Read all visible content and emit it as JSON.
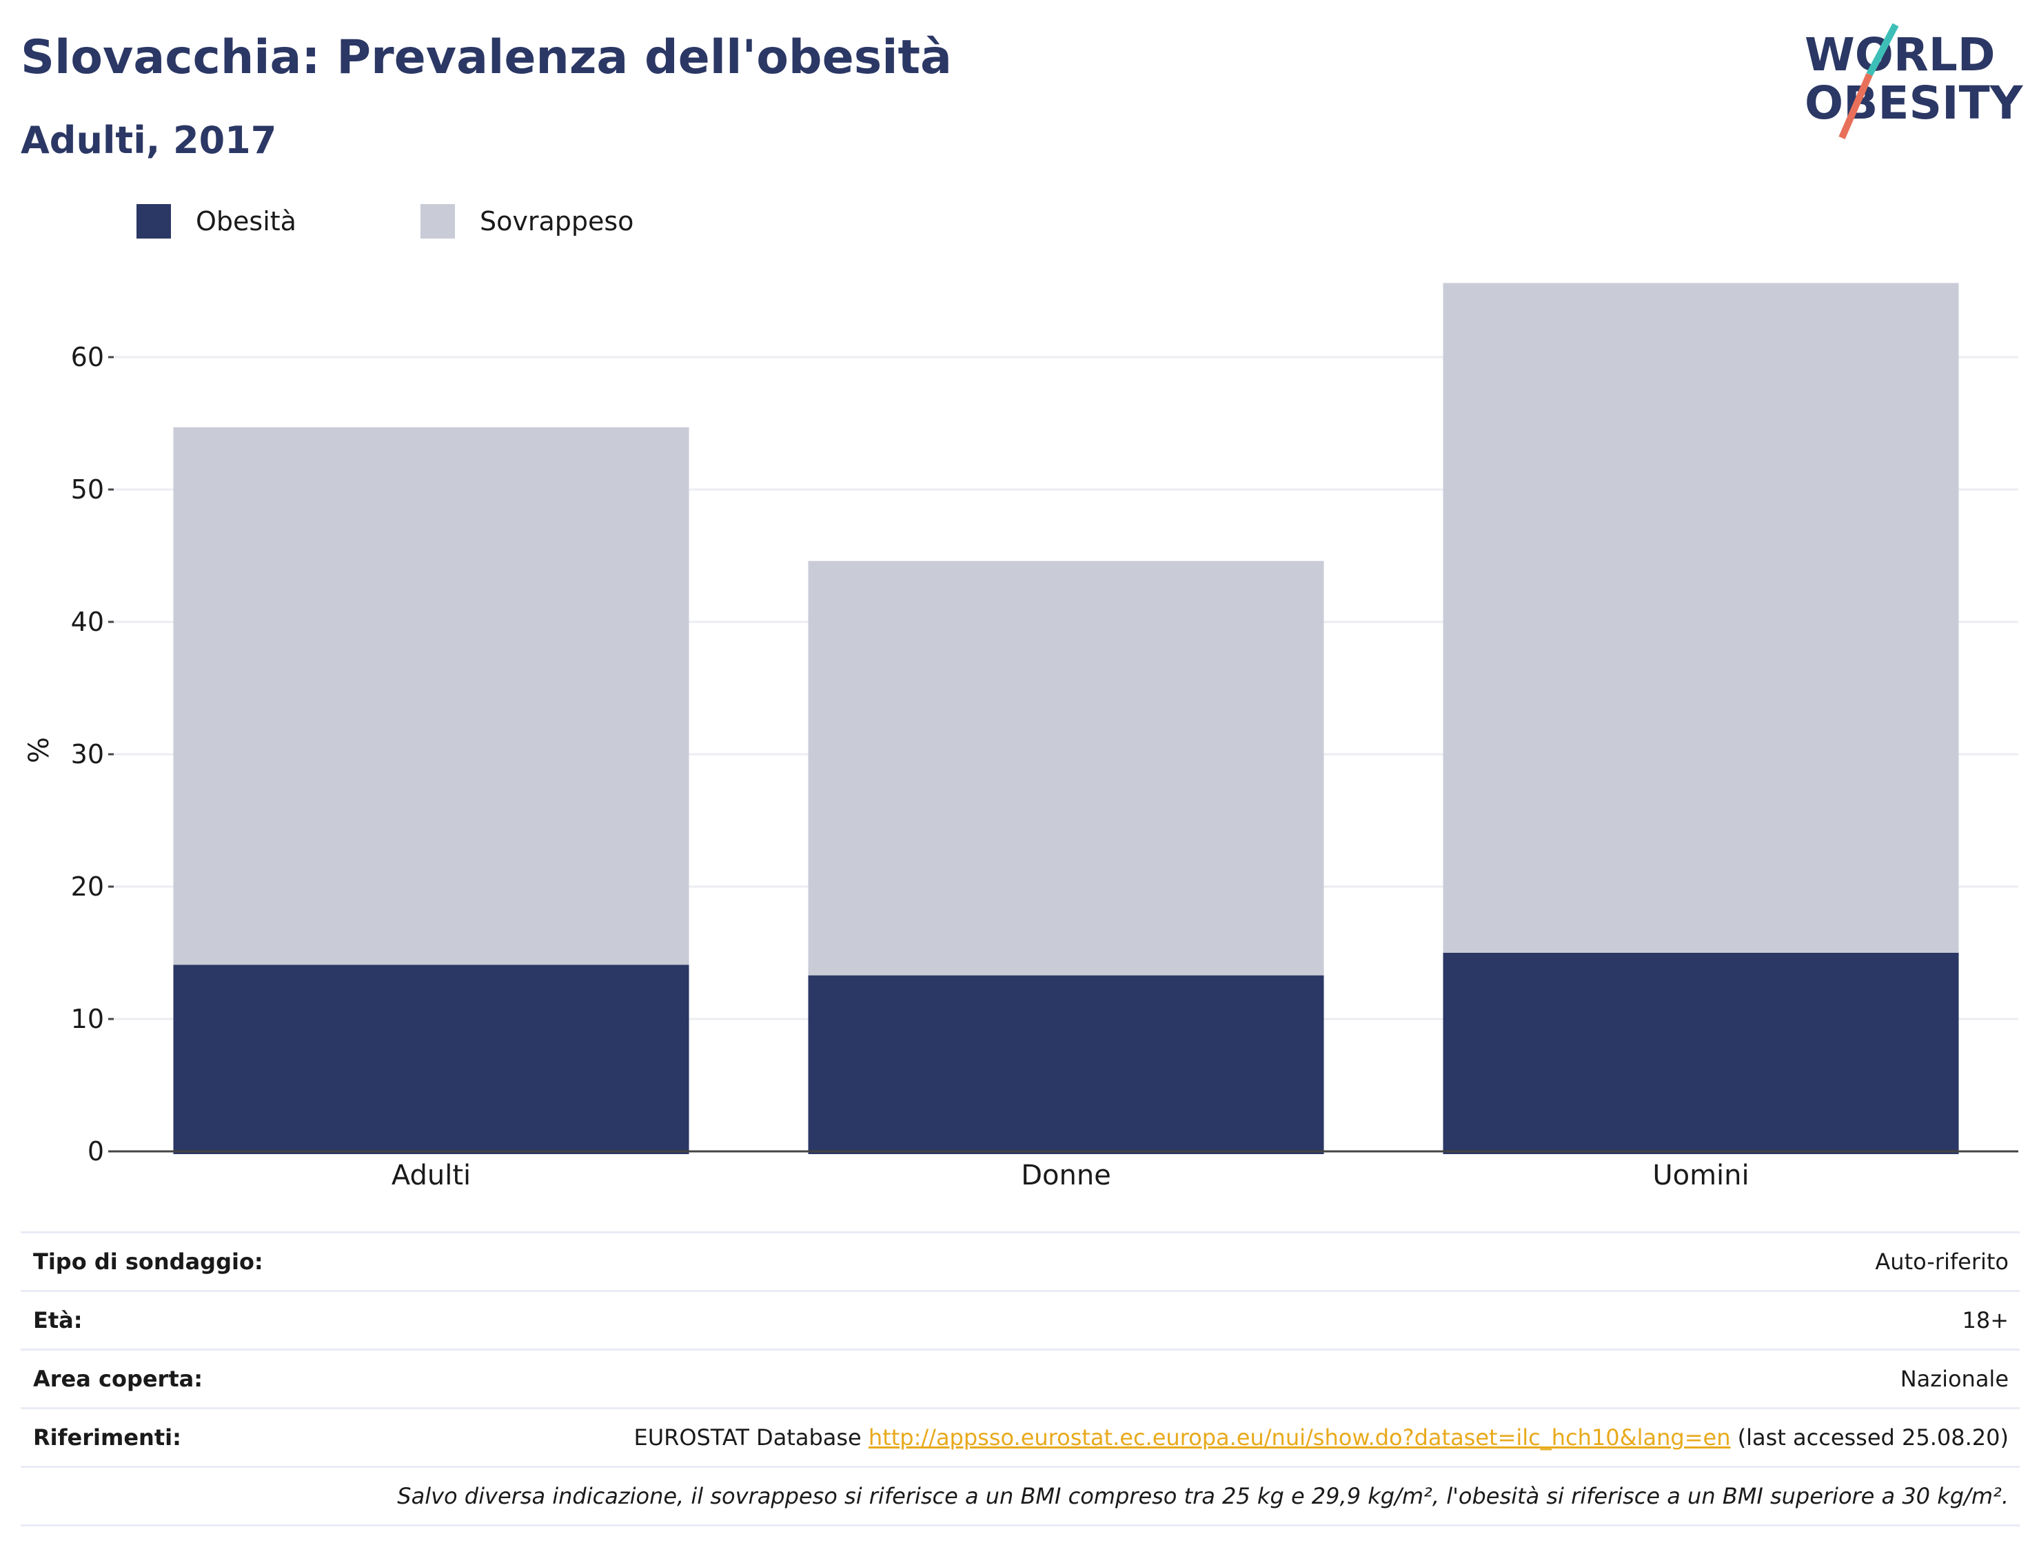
{
  "header": {
    "title": "Slovacchia: Prevalenza dell'obesità",
    "subtitle": "Adulti, 2017"
  },
  "logo": {
    "line1": "WORLD",
    "line2": "OBESITY",
    "accent_colors": [
      "#3dbfb8",
      "#e8705a"
    ],
    "text_color": "#2b3764"
  },
  "chart_data": {
    "type": "bar",
    "stacked": true,
    "categories": [
      "Adulti",
      "Donne",
      "Uomini"
    ],
    "series": [
      {
        "name": "Obesità",
        "color": "#2b3764",
        "values": [
          14.1,
          13.3,
          15.0
        ]
      },
      {
        "name": "Sovrappeso",
        "color": "#c9cbd7",
        "values": [
          40.6,
          31.3,
          50.6
        ]
      }
    ],
    "ylabel": "%",
    "ylim": [
      0,
      70
    ],
    "yticks": [
      0,
      10,
      20,
      30,
      40,
      50,
      60
    ],
    "grid": true,
    "legend_position": "top-left"
  },
  "info": {
    "rows": [
      {
        "label": "Tipo di sondaggio:",
        "value": "Auto-riferito"
      },
      {
        "label": "Età:",
        "value": "18+"
      },
      {
        "label": "Area coperta:",
        "value": "Nazionale"
      }
    ],
    "references": {
      "label": "Riferimenti:",
      "prefix": "EUROSTAT Database ",
      "link": "http://appsso.eurostat.ec.europa.eu/nui/show.do?dataset=ilc_hch10&lang=en",
      "suffix": " (last accessed 25.08.20)"
    },
    "note": "Salvo diversa indicazione, il sovrappeso si riferisce a un BMI compreso tra 25 kg e 29,9 kg/m², l'obesità si riferisce a un BMI superiore a 30 kg/m²."
  }
}
